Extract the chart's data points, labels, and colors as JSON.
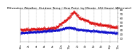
{
  "title": "Milwaukee Weather Outdoor Temp / Dew Point by Minute (24 Hours) (Alternate)",
  "title_fontsize": 3.2,
  "bg_color": "#ffffff",
  "plot_bg_color": "#ffffff",
  "grid_color": "#888888",
  "temp_color": "#dd0000",
  "dew_color": "#0000cc",
  "ylim": [
    0,
    80
  ],
  "yticks": [
    10,
    20,
    30,
    40,
    50,
    60,
    70,
    80
  ],
  "ylabel_fontsize": 3.0,
  "xlabel_fontsize": 2.5,
  "num_minutes": 1440,
  "xtick_hours": [
    0,
    2,
    4,
    6,
    8,
    10,
    12,
    14,
    16,
    18,
    20,
    22,
    24
  ],
  "xtick_labels": [
    "12a",
    "2a",
    "4a",
    "6a",
    "8a",
    "10a",
    "12p",
    "2p",
    "4p",
    "6p",
    "8p",
    "10p",
    "12a"
  ],
  "markersize": 0.6,
  "dot_step": 3
}
